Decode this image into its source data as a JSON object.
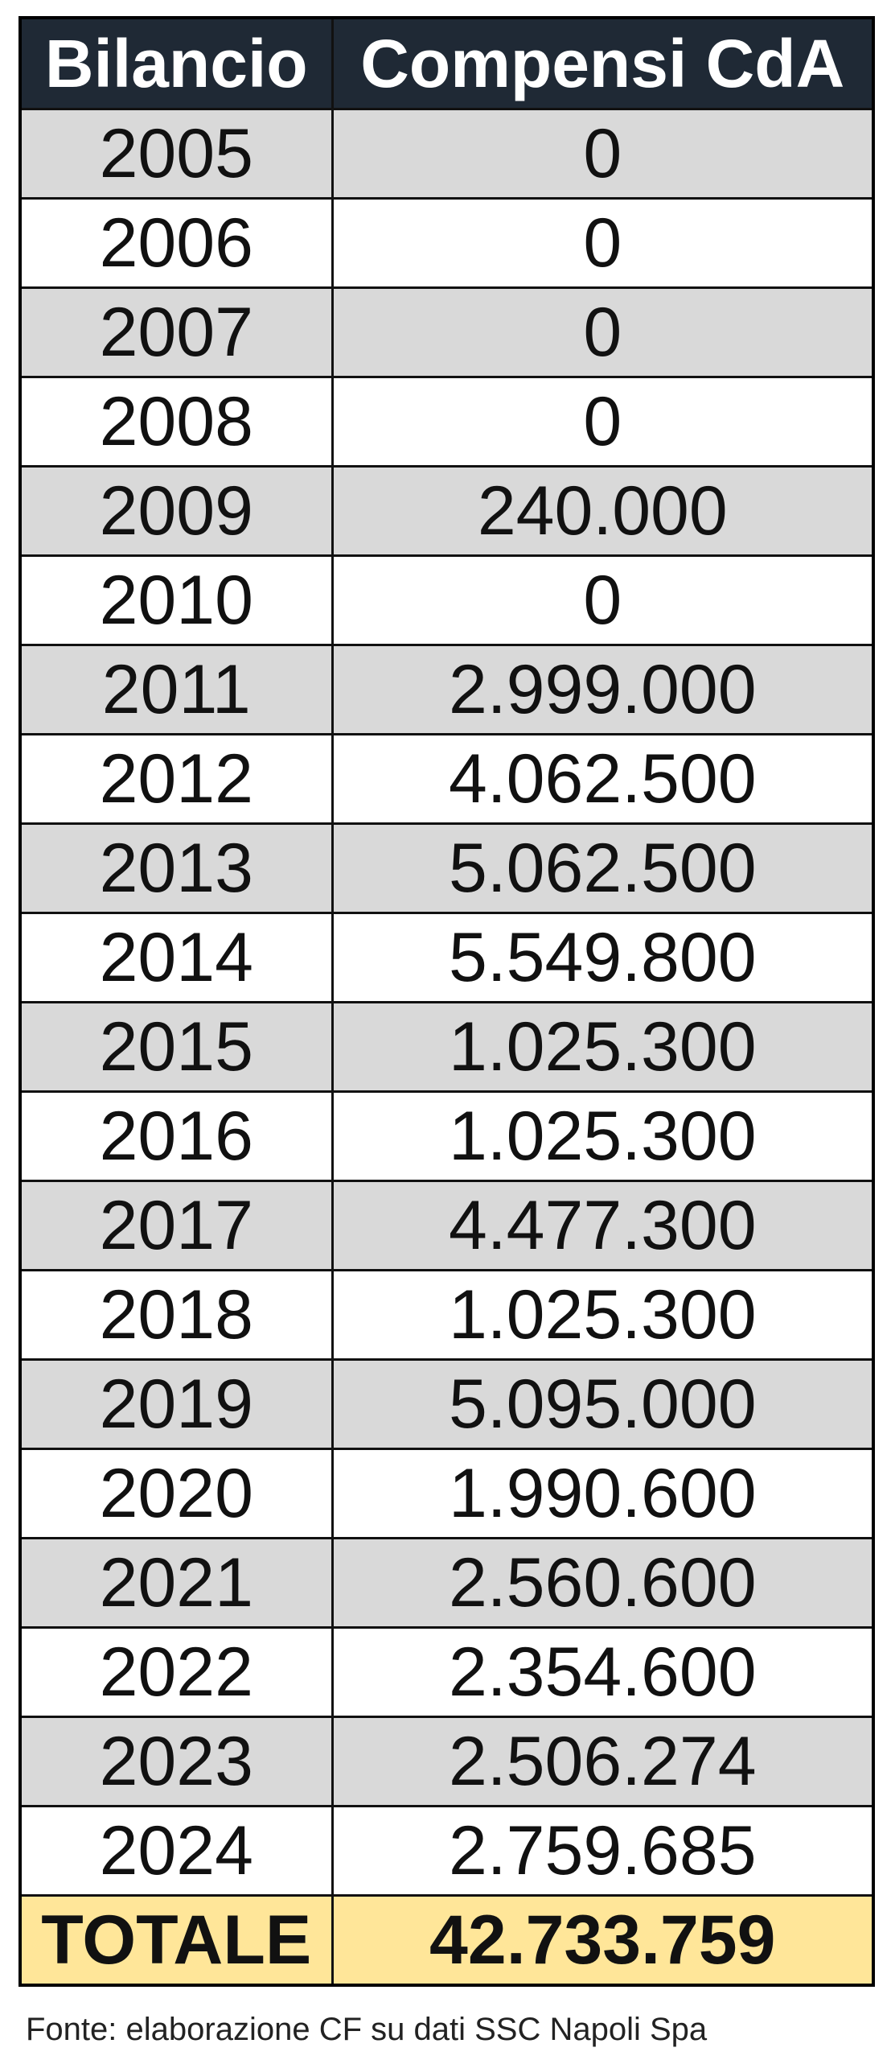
{
  "table": {
    "headers": [
      "Bilancio",
      "Compensi CdA"
    ],
    "rows": [
      [
        "2005",
        "0"
      ],
      [
        "2006",
        "0"
      ],
      [
        "2007",
        "0"
      ],
      [
        "2008",
        "0"
      ],
      [
        "2009",
        "240.000"
      ],
      [
        "2010",
        "0"
      ],
      [
        "2011",
        "2.999.000"
      ],
      [
        "2012",
        "4.062.500"
      ],
      [
        "2013",
        "5.062.500"
      ],
      [
        "2014",
        "5.549.800"
      ],
      [
        "2015",
        "1.025.300"
      ],
      [
        "2016",
        "1.025.300"
      ],
      [
        "2017",
        "4.477.300"
      ],
      [
        "2018",
        "1.025.300"
      ],
      [
        "2019",
        "5.095.000"
      ],
      [
        "2020",
        "1.990.600"
      ],
      [
        "2021",
        "2.560.600"
      ],
      [
        "2022",
        "2.354.600"
      ],
      [
        "2023",
        "2.506.274"
      ],
      [
        "2024",
        "2.759.685"
      ]
    ],
    "total": [
      "TOTALE",
      "42.733.759"
    ]
  },
  "source": "Fonte: elaborazione CF su dati SSC Napoli Spa"
}
